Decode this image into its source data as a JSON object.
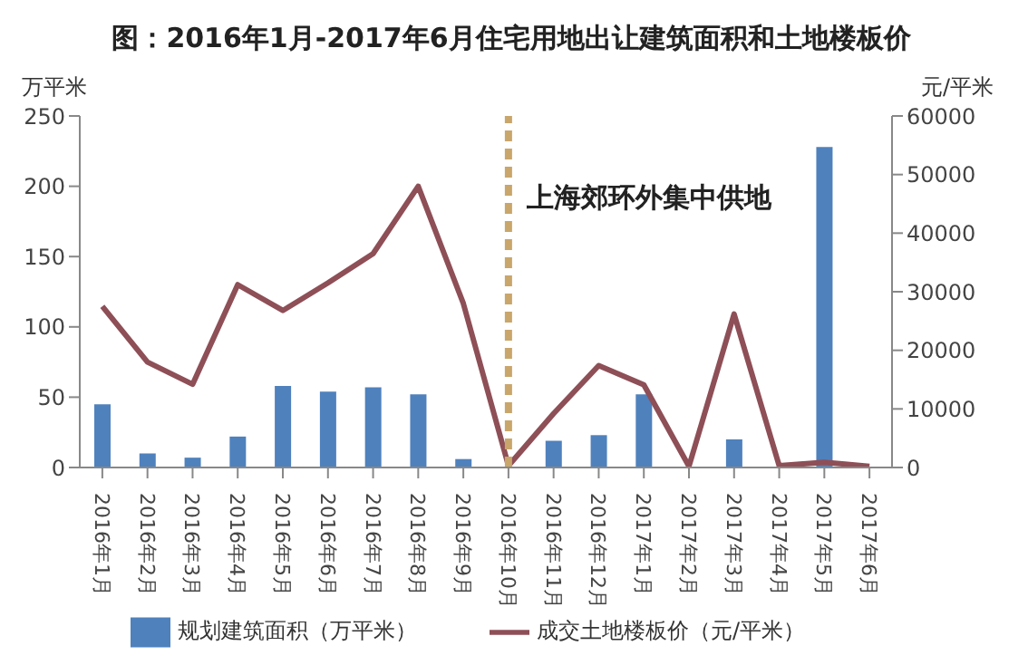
{
  "chart_data": {
    "type": "bar",
    "title": "图：2016年1月-2017年6月住宅用地出让建筑面积和土地楼板价",
    "ylabel": "万平米",
    "y2label": "元/平米",
    "categories": [
      "2016年1月",
      "2016年2月",
      "2016年3月",
      "2016年4月",
      "2016年5月",
      "2016年6月",
      "2016年7月",
      "2016年8月",
      "2016年9月",
      "2016年10月",
      "2016年11月",
      "2016年12月",
      "2017年1月",
      "2017年2月",
      "2017年3月",
      "2017年4月",
      "2017年5月",
      "2017年6月"
    ],
    "series": [
      {
        "name": "规划建筑面积（万平米）",
        "color": "#4f81bd",
        "values": [
          45,
          10,
          7,
          22,
          58,
          54,
          57,
          52,
          6,
          0,
          19,
          23,
          52,
          0,
          20,
          0,
          228,
          0
        ]
      },
      {
        "name": "成交土地楼板价（元/平米）",
        "type": "line",
        "axis": "y2",
        "color": "#8e4f57",
        "values": [
          27500,
          18000,
          14200,
          31200,
          26800,
          31500,
          36500,
          48000,
          28000,
          300,
          9200,
          17400,
          14100,
          200,
          26200,
          300,
          900,
          200
        ]
      }
    ],
    "ylim": [
      0,
      250
    ],
    "yticks": [
      0,
      50,
      100,
      150,
      200,
      250
    ],
    "y2lim": [
      0,
      60000
    ],
    "y2ticks": [
      0,
      10000,
      20000,
      30000,
      40000,
      50000,
      60000
    ],
    "ref_lines": [
      {
        "axis": "x",
        "value": "2016年10月",
        "label": "上海郊环外集中供地",
        "color": "#c9a66b",
        "line_style": "dashed"
      }
    ],
    "grid": false,
    "legend": "bottom",
    "marker": "none",
    "line_style": "solid"
  }
}
